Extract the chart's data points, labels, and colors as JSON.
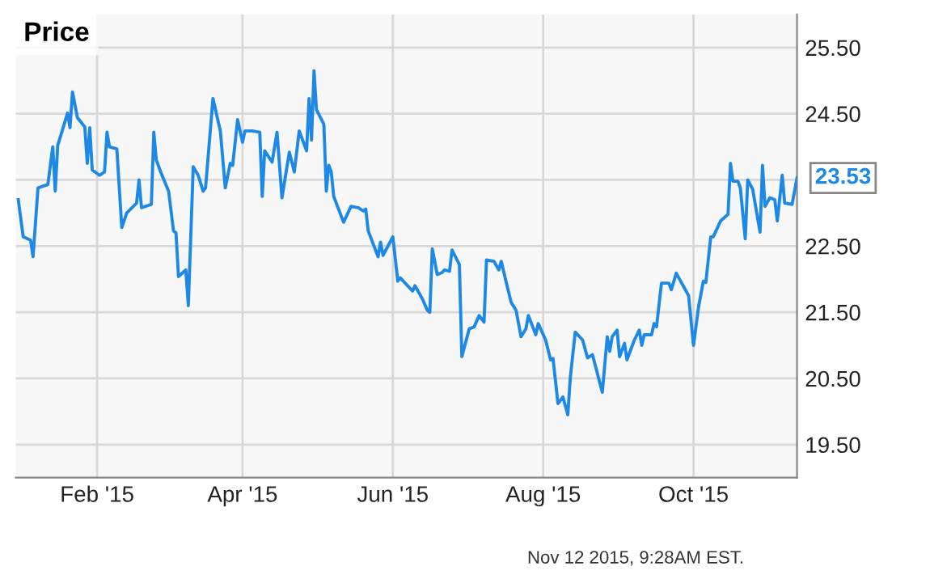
{
  "chart_data": {
    "type": "line",
    "title": "Price",
    "x": [
      "2014-12-31",
      "2015-01-02",
      "2015-01-05",
      "2015-01-06",
      "2015-01-08",
      "2015-01-12",
      "2015-01-14",
      "2015-01-15",
      "2015-01-16",
      "2015-01-20",
      "2015-01-21",
      "2015-01-22",
      "2015-01-24",
      "2015-01-27",
      "2015-01-28",
      "2015-01-29",
      "2015-01-30",
      "2015-02-02",
      "2015-02-04",
      "2015-02-05",
      "2015-02-06",
      "2015-02-09",
      "2015-02-11",
      "2015-02-13",
      "2015-02-17",
      "2015-02-18",
      "2015-02-19",
      "2015-02-23",
      "2015-02-24",
      "2015-02-25",
      "2015-02-27",
      "2015-03-02",
      "2015-03-04",
      "2015-03-05",
      "2015-03-06",
      "2015-03-09",
      "2015-03-10",
      "2015-03-12",
      "2015-03-14",
      "2015-03-16",
      "2015-03-17",
      "2015-03-20",
      "2015-03-23",
      "2015-03-25",
      "2015-03-27",
      "2015-03-28",
      "2015-03-30",
      "2015-04-01",
      "2015-04-02",
      "2015-04-05",
      "2015-04-08",
      "2015-04-09",
      "2015-04-10",
      "2015-04-13",
      "2015-04-15",
      "2015-04-17",
      "2015-04-20",
      "2015-04-22",
      "2015-04-24",
      "2015-04-27",
      "2015-04-28",
      "2015-04-29",
      "2015-04-30",
      "2015-05-01",
      "2015-05-04",
      "2015-05-05",
      "2015-05-06",
      "2015-05-07",
      "2015-05-08",
      "2015-05-12",
      "2015-05-15",
      "2015-05-18",
      "2015-05-20",
      "2015-05-21",
      "2015-05-22",
      "2015-05-26",
      "2015-05-27",
      "2015-05-28",
      "2015-06-01",
      "2015-06-03",
      "2015-06-04",
      "2015-06-07",
      "2015-06-09",
      "2015-06-10",
      "2015-06-13",
      "2015-06-15",
      "2015-06-16",
      "2015-06-17",
      "2015-06-19",
      "2015-06-21",
      "2015-06-22",
      "2015-06-24",
      "2015-06-25",
      "2015-06-28",
      "2015-06-29",
      "2015-07-02",
      "2015-07-04",
      "2015-07-06",
      "2015-07-08",
      "2015-07-09",
      "2015-07-12",
      "2015-07-14",
      "2015-07-15",
      "2015-07-17",
      "2015-07-19",
      "2015-07-21",
      "2015-07-23",
      "2015-07-25",
      "2015-07-26",
      "2015-07-29",
      "2015-07-30",
      "2015-08-02",
      "2015-08-04",
      "2015-08-05",
      "2015-08-07",
      "2015-08-09",
      "2015-08-11",
      "2015-08-12",
      "2015-08-14",
      "2015-08-17",
      "2015-08-19",
      "2015-08-21",
      "2015-08-25",
      "2015-08-27",
      "2015-08-28",
      "2015-08-29",
      "2015-08-31",
      "2015-09-01",
      "2015-09-03",
      "2015-09-04",
      "2015-09-07",
      "2015-09-09",
      "2015-09-10",
      "2015-09-11",
      "2015-09-14",
      "2015-09-15",
      "2015-09-16",
      "2015-09-18",
      "2015-09-21",
      "2015-09-22",
      "2015-09-24",
      "2015-09-28",
      "2015-09-29",
      "2015-10-01",
      "2015-10-03",
      "2015-10-05",
      "2015-10-06",
      "2015-10-08",
      "2015-10-09",
      "2015-10-12",
      "2015-10-15",
      "2015-10-16",
      "2015-10-17",
      "2015-10-19",
      "2015-10-20",
      "2015-10-22",
      "2015-10-23",
      "2015-10-25",
      "2015-10-28",
      "2015-10-29",
      "2015-10-30",
      "2015-11-01",
      "2015-11-03",
      "2015-11-04",
      "2015-11-06",
      "2015-11-07",
      "2015-11-10",
      "2015-11-12"
    ],
    "series": [
      {
        "color": "#1e88e5",
        "values": [
          23.2,
          22.64,
          22.59,
          22.34,
          23.38,
          23.43,
          24.0,
          23.33,
          24.02,
          24.51,
          24.29,
          24.83,
          24.44,
          24.3,
          23.75,
          24.29,
          23.65,
          23.57,
          23.62,
          24.22,
          24.0,
          23.97,
          22.78,
          23.0,
          23.15,
          23.5,
          23.08,
          23.13,
          24.22,
          23.8,
          23.6,
          23.33,
          22.73,
          22.7,
          22.04,
          22.14,
          21.6,
          23.7,
          23.57,
          23.33,
          23.38,
          24.73,
          24.24,
          23.38,
          23.75,
          23.72,
          24.41,
          24.07,
          24.24,
          24.24,
          24.22,
          23.25,
          23.94,
          23.77,
          24.22,
          23.23,
          23.92,
          23.62,
          24.24,
          23.94,
          24.73,
          24.1,
          25.15,
          24.56,
          24.34,
          23.33,
          23.72,
          23.62,
          23.25,
          22.86,
          23.1,
          23.08,
          23.03,
          23.06,
          22.73,
          22.34,
          22.56,
          22.36,
          22.64,
          21.97,
          22.02,
          21.9,
          21.82,
          21.9,
          21.7,
          21.53,
          21.5,
          22.46,
          22.07,
          22.1,
          22.14,
          22.12,
          22.44,
          22.22,
          20.83,
          21.25,
          21.28,
          21.45,
          21.35,
          22.29,
          22.27,
          22.14,
          22.27,
          21.95,
          21.65,
          21.53,
          21.13,
          21.25,
          21.45,
          21.16,
          21.33,
          21.08,
          20.78,
          20.8,
          20.12,
          20.22,
          19.95,
          20.51,
          21.2,
          21.08,
          20.81,
          20.86,
          20.29,
          21.13,
          20.91,
          21.13,
          21.23,
          20.83,
          21.03,
          20.78,
          21.08,
          21.23,
          21.0,
          21.16,
          21.16,
          21.33,
          21.28,
          21.94,
          21.94,
          21.84,
          22.09,
          21.82,
          21.75,
          21.0,
          21.57,
          21.97,
          21.95,
          22.64,
          22.64,
          22.88,
          22.98,
          23.75,
          23.48,
          23.48,
          23.38,
          22.61,
          23.5,
          23.36,
          22.71,
          23.72,
          23.1,
          23.23,
          23.2,
          22.88,
          23.57,
          23.15,
          23.13,
          23.53
        ]
      }
    ],
    "xlim": [
      "2014-12-30",
      "2015-11-12"
    ],
    "xticks": [
      {
        "value": "2015-02-01",
        "label": "Feb '15"
      },
      {
        "value": "2015-04-01",
        "label": "Apr '15"
      },
      {
        "value": "2015-06-01",
        "label": "Jun '15"
      },
      {
        "value": "2015-08-01",
        "label": "Aug '15"
      },
      {
        "value": "2015-10-01",
        "label": "Oct '15"
      }
    ],
    "ylim": [
      19.0,
      26.0
    ],
    "yticks": [
      {
        "value": 19.5,
        "label": "19.50"
      },
      {
        "value": 20.5,
        "label": "20.50"
      },
      {
        "value": 21.5,
        "label": "21.50"
      },
      {
        "value": 22.5,
        "label": "22.50"
      },
      {
        "value": 23.5,
        "label": null
      },
      {
        "value": 24.5,
        "label": "24.50"
      },
      {
        "value": 25.5,
        "label": "25.50"
      }
    ],
    "grid": true,
    "marker": "none",
    "line_style": "solid",
    "annotations": [
      {
        "text": "23.53",
        "x": "2015-11-12",
        "y": 23.53
      },
      "Nov 12 2015, 9:28AM EST."
    ]
  }
}
